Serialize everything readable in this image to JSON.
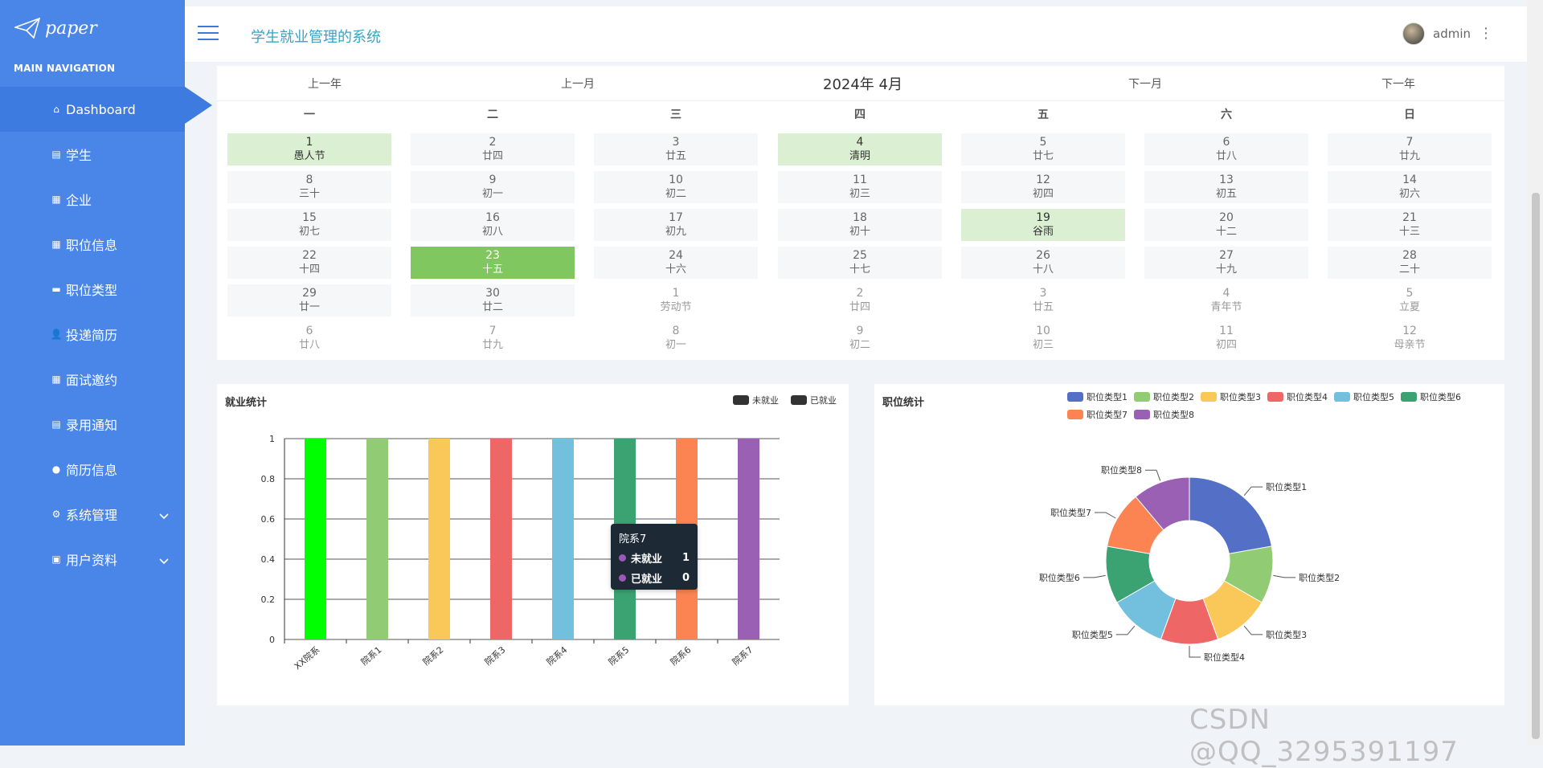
{
  "sidebar": {
    "logo_text": "paper",
    "nav_title": "MAIN NAVIGATION",
    "items": [
      {
        "label": "Dashboard",
        "icon": "home-icon"
      },
      {
        "label": "学生",
        "icon": "clipboard-icon"
      },
      {
        "label": "企业",
        "icon": "grid-icon"
      },
      {
        "label": "职位信息",
        "icon": "grid-icon"
      },
      {
        "label": "职位类型",
        "icon": "list-icon"
      },
      {
        "label": "投递简历",
        "icon": "user-icon"
      },
      {
        "label": "面试邀约",
        "icon": "grid-icon"
      },
      {
        "label": "录用通知",
        "icon": "clipboard-icon"
      },
      {
        "label": "简历信息",
        "icon": "pin-icon"
      },
      {
        "label": "系统管理",
        "icon": "gears-icon"
      },
      {
        "label": "用户资料",
        "icon": "calendar-icon"
      }
    ]
  },
  "header": {
    "title": "学生就业管理的系统",
    "username": "admin"
  },
  "calendar": {
    "prev_year": "上一年",
    "prev_month": "上一月",
    "title": "2024年 4月",
    "next_month": "下一月",
    "next_year": "下一年",
    "weekdays": [
      "一",
      "二",
      "三",
      "四",
      "五",
      "六",
      "日"
    ],
    "days": [
      {
        "n": "1",
        "l": "愚人节",
        "s": "festival"
      },
      {
        "n": "2",
        "l": "廿四",
        "s": ""
      },
      {
        "n": "3",
        "l": "廿五",
        "s": ""
      },
      {
        "n": "4",
        "l": "清明",
        "s": "festival"
      },
      {
        "n": "5",
        "l": "廿七",
        "s": ""
      },
      {
        "n": "6",
        "l": "廿八",
        "s": ""
      },
      {
        "n": "7",
        "l": "廿九",
        "s": ""
      },
      {
        "n": "8",
        "l": "三十",
        "s": ""
      },
      {
        "n": "9",
        "l": "初一",
        "s": ""
      },
      {
        "n": "10",
        "l": "初二",
        "s": ""
      },
      {
        "n": "11",
        "l": "初三",
        "s": ""
      },
      {
        "n": "12",
        "l": "初四",
        "s": ""
      },
      {
        "n": "13",
        "l": "初五",
        "s": ""
      },
      {
        "n": "14",
        "l": "初六",
        "s": ""
      },
      {
        "n": "15",
        "l": "初七",
        "s": ""
      },
      {
        "n": "16",
        "l": "初八",
        "s": ""
      },
      {
        "n": "17",
        "l": "初九",
        "s": ""
      },
      {
        "n": "18",
        "l": "初十",
        "s": ""
      },
      {
        "n": "19",
        "l": "谷雨",
        "s": "festival"
      },
      {
        "n": "20",
        "l": "十二",
        "s": ""
      },
      {
        "n": "21",
        "l": "十三",
        "s": ""
      },
      {
        "n": "22",
        "l": "十四",
        "s": ""
      },
      {
        "n": "23",
        "l": "十五",
        "s": "today"
      },
      {
        "n": "24",
        "l": "十六",
        "s": ""
      },
      {
        "n": "25",
        "l": "十七",
        "s": ""
      },
      {
        "n": "26",
        "l": "十八",
        "s": ""
      },
      {
        "n": "27",
        "l": "十九",
        "s": ""
      },
      {
        "n": "28",
        "l": "二十",
        "s": ""
      },
      {
        "n": "29",
        "l": "廿一",
        "s": ""
      },
      {
        "n": "30",
        "l": "廿二",
        "s": ""
      },
      {
        "n": "1",
        "l": "劳动节",
        "s": "other"
      },
      {
        "n": "2",
        "l": "廿四",
        "s": "other"
      },
      {
        "n": "3",
        "l": "廿五",
        "s": "other"
      },
      {
        "n": "4",
        "l": "青年节",
        "s": "other"
      },
      {
        "n": "5",
        "l": "立夏",
        "s": "other"
      },
      {
        "n": "6",
        "l": "廿八",
        "s": "other"
      },
      {
        "n": "7",
        "l": "廿九",
        "s": "other"
      },
      {
        "n": "8",
        "l": "初一",
        "s": "other"
      },
      {
        "n": "9",
        "l": "初二",
        "s": "other"
      },
      {
        "n": "10",
        "l": "初三",
        "s": "other"
      },
      {
        "n": "11",
        "l": "初四",
        "s": "other"
      },
      {
        "n": "12",
        "l": "母亲节",
        "s": "other"
      }
    ]
  },
  "employment_chart": {
    "title": "就业统计",
    "legend": [
      "未就业",
      "已就业"
    ],
    "legend_color": "#333333"
  },
  "position_chart": {
    "title": "职位统计"
  },
  "tooltip": {
    "title": "院系7",
    "rows": [
      {
        "label": "未就业",
        "value": "1"
      },
      {
        "label": "已就业",
        "value": "0"
      }
    ]
  },
  "watermark": "CSDN @QQ_3295391197",
  "chart_data": [
    {
      "type": "bar",
      "title": "就业统计",
      "categories": [
        "XX院系",
        "院系1",
        "院系2",
        "院系3",
        "院系4",
        "院系5",
        "院系6",
        "院系7"
      ],
      "series": [
        {
          "name": "未就业",
          "values": [
            1,
            1,
            1,
            1,
            1,
            1,
            1,
            1
          ]
        },
        {
          "name": "已就业",
          "values": [
            0,
            0,
            0,
            0,
            0,
            0,
            0,
            0
          ]
        }
      ],
      "colors": [
        "#00ff00",
        "#91cc75",
        "#fac858",
        "#ee6666",
        "#73c0de",
        "#3ba272",
        "#fc8452",
        "#9a60b4"
      ],
      "ylim": [
        0,
        1
      ],
      "yticks": [
        "0",
        "0.2",
        "0.4",
        "0.6",
        "0.8",
        "1"
      ]
    },
    {
      "type": "pie",
      "title": "职位统计",
      "labels": [
        "职位类型1",
        "职位类型2",
        "职位类型3",
        "职位类型4",
        "职位类型5",
        "职位类型6",
        "职位类型7",
        "职位类型8"
      ],
      "values": [
        22,
        11,
        11,
        11,
        11,
        11,
        11,
        11
      ],
      "colors": [
        "#5470c6",
        "#91cc75",
        "#fac858",
        "#ee6666",
        "#73c0de",
        "#3ba272",
        "#fc8452",
        "#9a60b4"
      ],
      "legend_position": "top-right"
    }
  ]
}
